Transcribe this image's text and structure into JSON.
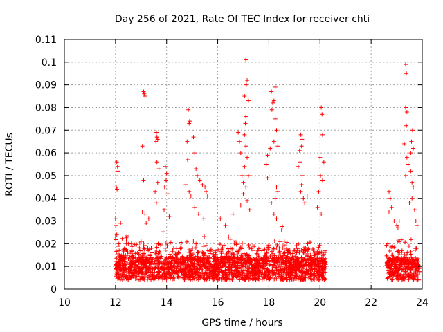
{
  "chart_data": {
    "type": "scatter",
    "title": "Day 256 of 2021, Rate Of TEC Index for receiver chti",
    "xlabel": "GPS time / hours",
    "ylabel": "ROTI / TECUs",
    "xlim": [
      10,
      24
    ],
    "ylim": [
      0,
      0.11
    ],
    "x_ticks": [
      10,
      12,
      14,
      16,
      18,
      20,
      22,
      24
    ],
    "x_tick_labels": [
      "10",
      "12",
      "14",
      "16",
      "18",
      "20",
      "22",
      "24"
    ],
    "y_ticks": [
      0,
      0.01,
      0.02,
      0.03,
      0.04,
      0.05,
      0.06,
      0.07,
      0.08,
      0.09,
      0.1,
      0.11
    ],
    "y_tick_labels": [
      "0",
      "0.01",
      "0.02",
      "0.03",
      "0.04",
      "0.05",
      "0.06",
      "0.07",
      "0.08",
      "0.09",
      "0.1",
      "0.11"
    ],
    "grid": true,
    "marker": "+",
    "color": "#ff0000",
    "series": [
      {
        "name": "ROTI",
        "note": "dense background band approx 0.003-0.02 TECU from 12.0-20.25 h and 22.6-23.9 h plus the listed spikes",
        "background_segments": [
          [
            12.0,
            20.25
          ],
          [
            22.6,
            23.9
          ]
        ],
        "points": [
          [
            12.05,
            0.056
          ],
          [
            12.08,
            0.054
          ],
          [
            12.1,
            0.052
          ],
          [
            12.03,
            0.045
          ],
          [
            12.06,
            0.044
          ],
          [
            12.0,
            0.031
          ],
          [
            12.02,
            0.028
          ],
          [
            12.05,
            0.024
          ],
          [
            12.0,
            0.023
          ],
          [
            13.1,
            0.087
          ],
          [
            13.12,
            0.086
          ],
          [
            13.15,
            0.085
          ],
          [
            13.05,
            0.063
          ],
          [
            13.1,
            0.048
          ],
          [
            13.05,
            0.034
          ],
          [
            13.15,
            0.033
          ],
          [
            13.2,
            0.029
          ],
          [
            13.3,
            0.031
          ],
          [
            13.6,
            0.069
          ],
          [
            13.62,
            0.067
          ],
          [
            13.65,
            0.066
          ],
          [
            13.58,
            0.065
          ],
          [
            13.62,
            0.056
          ],
          [
            13.7,
            0.053
          ],
          [
            13.65,
            0.047
          ],
          [
            13.55,
            0.043
          ],
          [
            13.6,
            0.038
          ],
          [
            13.95,
            0.054
          ],
          [
            14.0,
            0.051
          ],
          [
            13.98,
            0.048
          ],
          [
            13.92,
            0.045
          ],
          [
            14.05,
            0.042
          ],
          [
            13.9,
            0.035
          ],
          [
            14.1,
            0.032
          ],
          [
            14.85,
            0.079
          ],
          [
            14.9,
            0.074
          ],
          [
            14.88,
            0.073
          ],
          [
            14.8,
            0.065
          ],
          [
            15.05,
            0.067
          ],
          [
            14.82,
            0.057
          ],
          [
            14.75,
            0.046
          ],
          [
            14.88,
            0.043
          ],
          [
            14.95,
            0.041
          ],
          [
            15.1,
            0.06
          ],
          [
            15.15,
            0.053
          ],
          [
            15.2,
            0.05
          ],
          [
            15.3,
            0.048
          ],
          [
            15.4,
            0.046
          ],
          [
            15.5,
            0.045
          ],
          [
            15.55,
            0.043
          ],
          [
            15.6,
            0.041
          ],
          [
            15.1,
            0.036
          ],
          [
            15.25,
            0.033
          ],
          [
            15.45,
            0.031
          ],
          [
            16.1,
            0.031
          ],
          [
            16.3,
            0.028
          ],
          [
            16.6,
            0.033
          ],
          [
            16.8,
            0.069
          ],
          [
            16.85,
            0.065
          ],
          [
            16.9,
            0.06
          ],
          [
            16.95,
            0.05
          ],
          [
            17.0,
            0.047
          ],
          [
            16.9,
            0.037
          ],
          [
            17.1,
            0.101
          ],
          [
            17.15,
            0.092
          ],
          [
            17.12,
            0.09
          ],
          [
            17.05,
            0.085
          ],
          [
            17.2,
            0.083
          ],
          [
            17.1,
            0.076
          ],
          [
            17.08,
            0.073
          ],
          [
            17.05,
            0.068
          ],
          [
            17.1,
            0.063
          ],
          [
            17.15,
            0.058
          ],
          [
            17.05,
            0.054
          ],
          [
            17.2,
            0.05
          ],
          [
            17.1,
            0.045
          ],
          [
            17.0,
            0.042
          ],
          [
            17.15,
            0.039
          ],
          [
            17.25,
            0.035
          ],
          [
            18.1,
            0.087
          ],
          [
            18.25,
            0.089
          ],
          [
            18.2,
            0.083
          ],
          [
            18.15,
            0.082
          ],
          [
            18.12,
            0.079
          ],
          [
            18.25,
            0.075
          ],
          [
            18.3,
            0.07
          ],
          [
            18.2,
            0.065
          ],
          [
            18.35,
            0.063
          ],
          [
            18.05,
            0.062
          ],
          [
            17.95,
            0.059
          ],
          [
            17.9,
            0.055
          ],
          [
            17.95,
            0.049
          ],
          [
            18.3,
            0.045
          ],
          [
            18.35,
            0.043
          ],
          [
            18.25,
            0.04
          ],
          [
            18.1,
            0.038
          ],
          [
            18.2,
            0.033
          ],
          [
            18.3,
            0.031
          ],
          [
            19.25,
            0.068
          ],
          [
            19.3,
            0.066
          ],
          [
            19.28,
            0.063
          ],
          [
            19.2,
            0.061
          ],
          [
            19.22,
            0.056
          ],
          [
            19.15,
            0.054
          ],
          [
            19.3,
            0.05
          ],
          [
            19.28,
            0.046
          ],
          [
            19.25,
            0.043
          ],
          [
            19.35,
            0.04
          ],
          [
            19.5,
            0.041
          ],
          [
            19.4,
            0.038
          ],
          [
            20.05,
            0.08
          ],
          [
            20.08,
            0.077
          ],
          [
            20.1,
            0.068
          ],
          [
            20.0,
            0.058
          ],
          [
            20.02,
            0.05
          ],
          [
            20.1,
            0.048
          ],
          [
            20.15,
            0.056
          ],
          [
            19.95,
            0.043
          ],
          [
            19.9,
            0.036
          ],
          [
            20.05,
            0.033
          ],
          [
            22.7,
            0.043
          ],
          [
            22.75,
            0.04
          ],
          [
            22.8,
            0.036
          ],
          [
            22.7,
            0.034
          ],
          [
            22.9,
            0.03
          ],
          [
            23.0,
            0.028
          ],
          [
            23.05,
            0.027
          ],
          [
            23.1,
            0.03
          ],
          [
            23.35,
            0.099
          ],
          [
            23.38,
            0.095
          ],
          [
            23.35,
            0.08
          ],
          [
            23.4,
            0.078
          ],
          [
            23.38,
            0.072
          ],
          [
            23.3,
            0.064
          ],
          [
            23.4,
            0.058
          ],
          [
            23.45,
            0.055
          ],
          [
            23.35,
            0.05
          ],
          [
            23.55,
            0.052
          ],
          [
            23.6,
            0.047
          ],
          [
            23.65,
            0.045
          ],
          [
            23.6,
            0.04
          ],
          [
            23.5,
            0.038
          ],
          [
            23.7,
            0.035
          ],
          [
            23.62,
            0.07
          ],
          [
            23.58,
            0.065
          ],
          [
            23.65,
            0.062
          ],
          [
            23.55,
            0.06
          ],
          [
            23.75,
            0.03
          ],
          [
            23.8,
            0.028
          ]
        ]
      }
    ]
  }
}
